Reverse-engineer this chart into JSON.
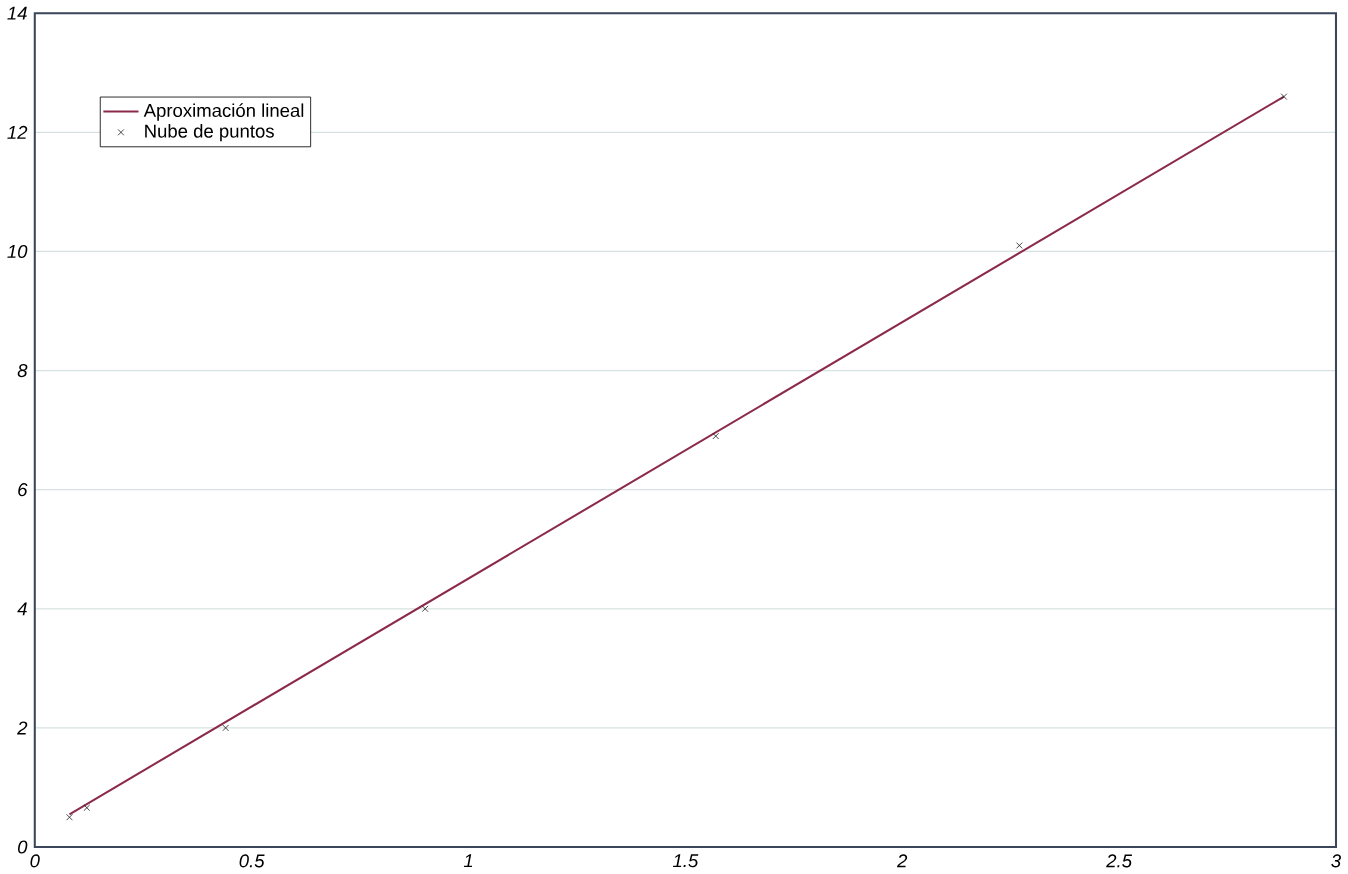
{
  "chart_data": {
    "type": "line",
    "xlim": [
      0,
      3
    ],
    "ylim": [
      0,
      14
    ],
    "xticks": [
      0,
      0.5,
      1,
      1.5,
      2,
      2.5,
      3
    ],
    "yticks": [
      0,
      2,
      4,
      6,
      8,
      10,
      12,
      14
    ],
    "grid": "y",
    "legend": "top left",
    "series": [
      {
        "name": "Aproximación lineal",
        "color": "#8b2a4a",
        "x": [
          0.08,
          2.88
        ],
        "values": [
          0.55,
          12.6
        ]
      },
      {
        "name": "Nube de puntos",
        "type": "scatter",
        "color": "#222222",
        "marker": "cross",
        "x": [
          0.08,
          0.12,
          0.44,
          0.9,
          1.57,
          2.27,
          2.88
        ],
        "values": [
          0.5,
          0.66,
          2.0,
          4.0,
          6.9,
          10.1,
          12.6
        ]
      }
    ]
  }
}
